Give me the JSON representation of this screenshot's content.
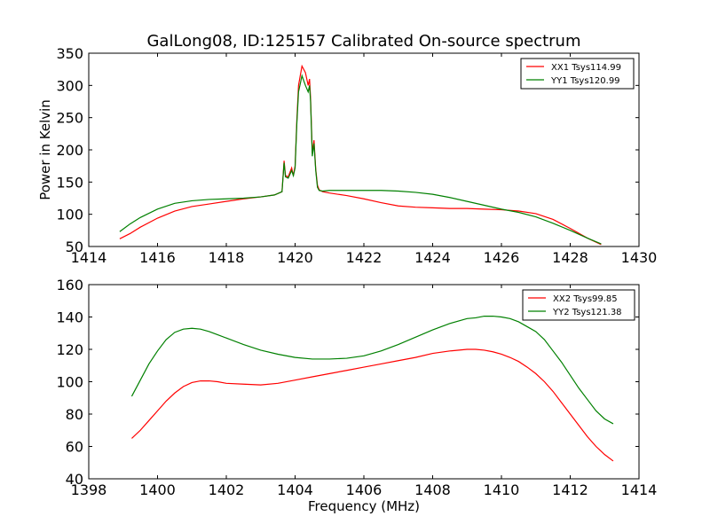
{
  "title": "GalLong08, ID:125157 Calibrated On-source spectrum",
  "chart_data": [
    {
      "type": "line",
      "xlim": [
        1414,
        1430
      ],
      "ylim": [
        50,
        350
      ],
      "xticks": [
        1414,
        1416,
        1418,
        1420,
        1422,
        1424,
        1426,
        1428,
        1430
      ],
      "yticks": [
        50,
        100,
        150,
        200,
        250,
        300,
        350
      ],
      "ylabel": "Power in Kelvin",
      "xlabel": "",
      "legend_position": "top-right",
      "series": [
        {
          "name": "XX1 Tsys114.99",
          "color": "#ff0000",
          "x": [
            1414.9,
            1415.2,
            1415.5,
            1416.0,
            1416.5,
            1417.0,
            1417.5,
            1418.0,
            1418.5,
            1419.0,
            1419.4,
            1419.62,
            1419.68,
            1419.72,
            1419.8,
            1419.9,
            1419.95,
            1420.0,
            1420.05,
            1420.1,
            1420.2,
            1420.3,
            1420.38,
            1420.42,
            1420.45,
            1420.5,
            1420.55,
            1420.6,
            1420.65,
            1420.7,
            1420.8,
            1421.0,
            1421.5,
            1422.0,
            1422.5,
            1423.0,
            1423.5,
            1424.0,
            1424.5,
            1425.0,
            1425.5,
            1426.0,
            1426.5,
            1427.0,
            1427.5,
            1428.0,
            1428.5,
            1428.9
          ],
          "y": [
            62,
            70,
            80,
            94,
            105,
            112,
            116,
            120,
            124,
            127,
            130,
            135,
            183,
            160,
            158,
            172,
            160,
            175,
            245,
            300,
            330,
            320,
            300,
            310,
            280,
            195,
            215,
            170,
            145,
            138,
            135,
            133,
            129,
            124,
            118,
            113,
            111,
            110,
            109,
            109,
            108,
            107,
            105,
            101,
            92,
            78,
            63,
            53
          ]
        },
        {
          "name": "YY1 Tsys120.99",
          "color": "#008000",
          "x": [
            1414.9,
            1415.2,
            1415.5,
            1416.0,
            1416.5,
            1417.0,
            1417.5,
            1418.0,
            1418.5,
            1419.0,
            1419.4,
            1419.62,
            1419.68,
            1419.72,
            1419.8,
            1419.9,
            1419.95,
            1420.0,
            1420.05,
            1420.1,
            1420.2,
            1420.3,
            1420.38,
            1420.42,
            1420.45,
            1420.5,
            1420.55,
            1420.6,
            1420.65,
            1420.7,
            1420.8,
            1421.0,
            1421.5,
            1422.0,
            1422.5,
            1423.0,
            1423.5,
            1424.0,
            1424.5,
            1425.0,
            1425.5,
            1426.0,
            1426.5,
            1427.0,
            1427.5,
            1428.0,
            1428.5,
            1428.9
          ],
          "y": [
            73,
            85,
            95,
            108,
            117,
            121,
            123,
            124,
            125,
            127,
            130,
            135,
            180,
            158,
            156,
            168,
            160,
            172,
            240,
            290,
            315,
            300,
            290,
            300,
            275,
            190,
            210,
            168,
            142,
            137,
            136,
            137,
            137,
            137,
            137,
            136,
            134,
            131,
            126,
            120,
            114,
            108,
            103,
            96,
            86,
            75,
            63,
            54
          ]
        }
      ]
    },
    {
      "type": "line",
      "xlim": [
        1398,
        1414
      ],
      "ylim": [
        40,
        160
      ],
      "xticks": [
        1398,
        1400,
        1402,
        1404,
        1406,
        1408,
        1410,
        1412,
        1414
      ],
      "yticks": [
        40,
        60,
        80,
        100,
        120,
        140,
        160
      ],
      "ylabel": "",
      "xlabel": "Frequency (MHz)",
      "legend_position": "top-right",
      "series": [
        {
          "name": "XX2 Tsys99.85",
          "color": "#ff0000",
          "x": [
            1399.25,
            1399.5,
            1399.75,
            1400.0,
            1400.25,
            1400.5,
            1400.75,
            1401.0,
            1401.25,
            1401.5,
            1401.75,
            1402.0,
            1402.5,
            1403.0,
            1403.5,
            1404.0,
            1404.5,
            1405.0,
            1405.5,
            1406.0,
            1406.5,
            1407.0,
            1407.5,
            1408.0,
            1408.5,
            1409.0,
            1409.25,
            1409.5,
            1409.75,
            1410.0,
            1410.25,
            1410.5,
            1410.75,
            1411.0,
            1411.25,
            1411.5,
            1411.75,
            1412.0,
            1412.25,
            1412.5,
            1412.75,
            1413.0,
            1413.25
          ],
          "y": [
            65,
            70,
            76,
            82,
            88,
            93,
            97,
            99.5,
            100.5,
            100.5,
            100,
            99,
            98.5,
            98,
            99,
            101,
            103,
            105,
            107,
            109,
            111,
            113,
            115,
            117.5,
            119,
            120,
            120,
            119.5,
            118.5,
            117,
            115,
            112.5,
            109,
            105,
            100,
            94,
            87,
            80,
            73,
            66,
            60,
            55,
            51
          ]
        },
        {
          "name": "YY2 Tsys121.38",
          "color": "#008000",
          "x": [
            1399.25,
            1399.5,
            1399.75,
            1400.0,
            1400.25,
            1400.5,
            1400.75,
            1401.0,
            1401.25,
            1401.5,
            1401.75,
            1402.0,
            1402.5,
            1403.0,
            1403.5,
            1404.0,
            1404.5,
            1405.0,
            1405.5,
            1406.0,
            1406.5,
            1407.0,
            1407.5,
            1408.0,
            1408.5,
            1409.0,
            1409.25,
            1409.5,
            1409.75,
            1410.0,
            1410.25,
            1410.5,
            1410.75,
            1411.0,
            1411.25,
            1411.5,
            1411.75,
            1412.0,
            1412.25,
            1412.5,
            1412.75,
            1413.0,
            1413.25
          ],
          "y": [
            91,
            101,
            111,
            119,
            126,
            130.5,
            132.5,
            133,
            132.5,
            131,
            129,
            127,
            123,
            119.5,
            117,
            115,
            114,
            114,
            114.5,
            116,
            119,
            123,
            127.5,
            132,
            136,
            139,
            139.5,
            140.5,
            140.5,
            140,
            139,
            137,
            134,
            131,
            126,
            119,
            112,
            104,
            96,
            89,
            82,
            77,
            74
          ]
        }
      ]
    }
  ]
}
